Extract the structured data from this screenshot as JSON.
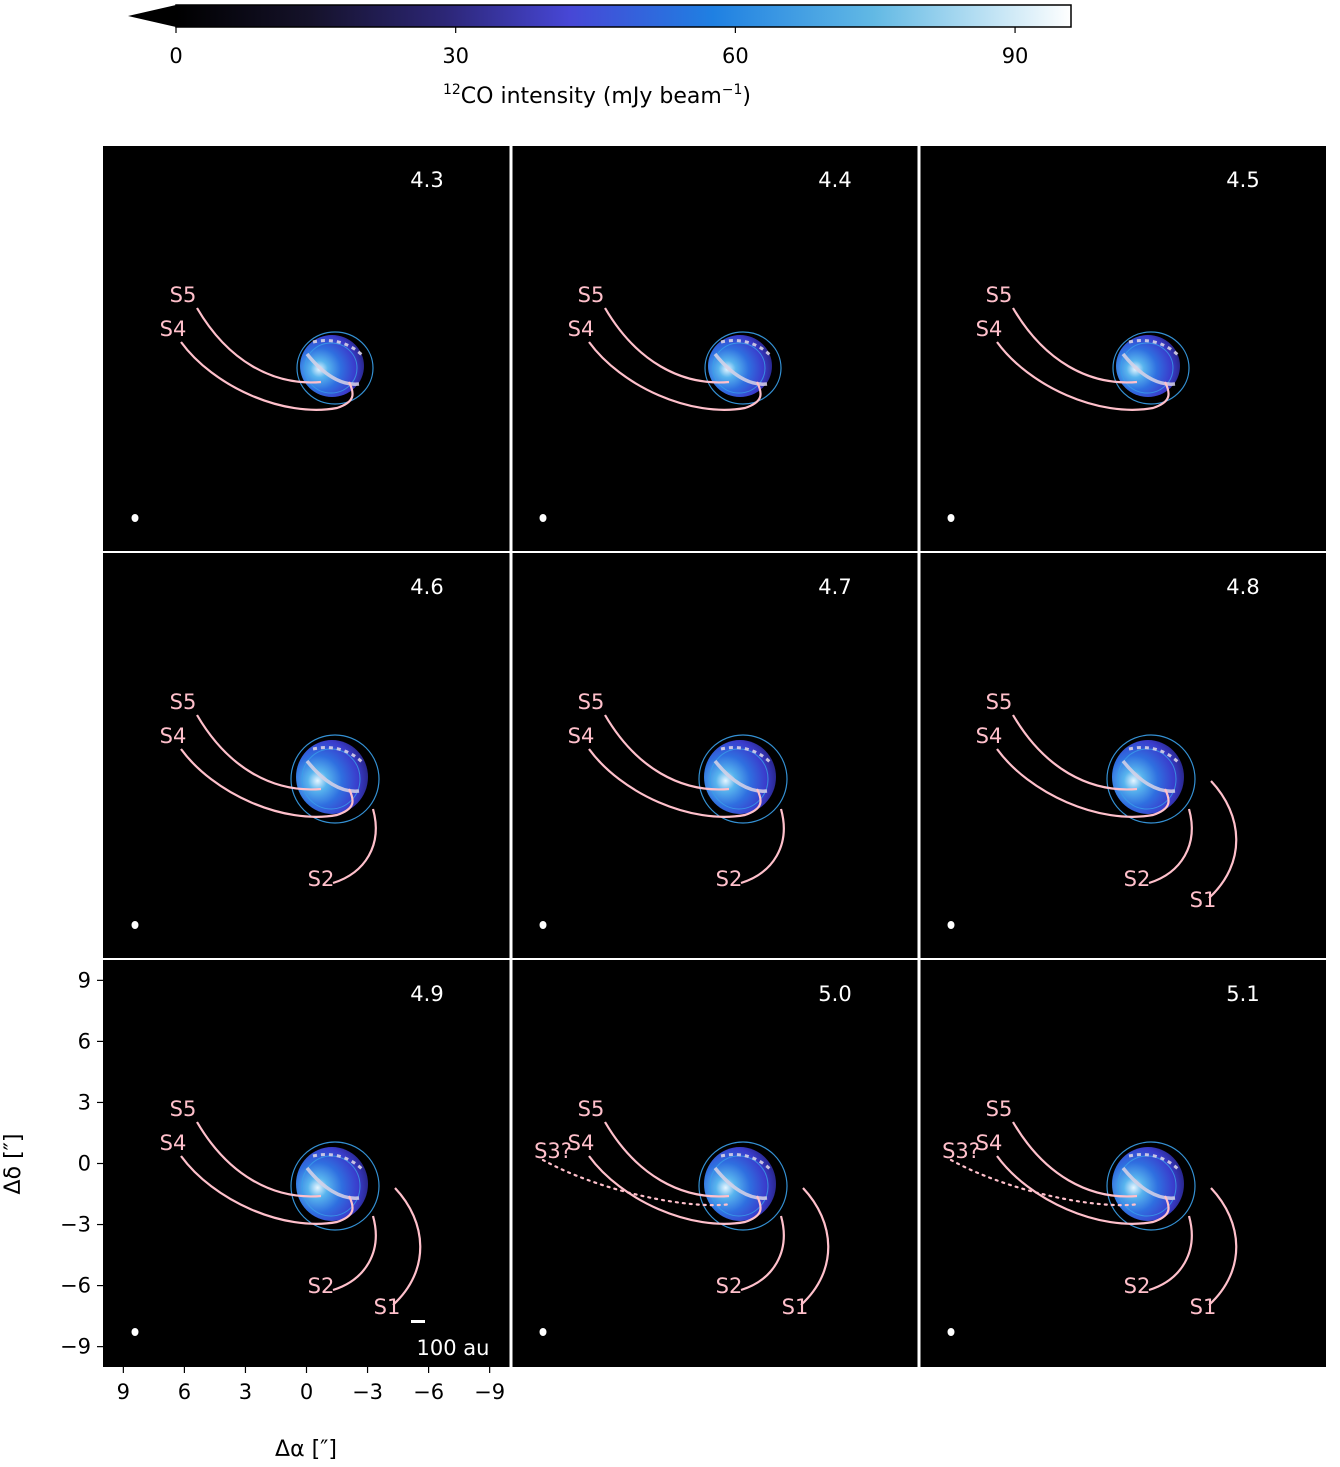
{
  "colorbar": {
    "label_prefix": "12",
    "label_main": "CO intensity (mJy beam",
    "label_exp": "−1",
    "label_suffix": ")",
    "ticks": [
      "0",
      "30",
      "60",
      "90"
    ],
    "range": [
      0,
      96
    ],
    "extend": "min",
    "colors": [
      "#000000",
      "#211a3c",
      "#4a47d4",
      "#1f7fe0",
      "#5fb8e6",
      "#ffffff"
    ]
  },
  "chart_data": {
    "type": "heatmap",
    "description_panels": "channel maps",
    "xlabel": "Δα [″]",
    "ylabel": "Δδ [″]",
    "xlim": [
      10,
      -10
    ],
    "ylim": [
      -10,
      10
    ],
    "x_ticks": [
      "9",
      "6",
      "3",
      "0",
      "−3",
      "−6",
      "−9"
    ],
    "y_ticks": [
      "9",
      "6",
      "3",
      "0",
      "−3",
      "−6",
      "−9"
    ],
    "scalebar_label": "100 au",
    "panels": [
      {
        "velocity": "4.3",
        "spirals": [
          "S5",
          "S4"
        ]
      },
      {
        "velocity": "4.4",
        "spirals": [
          "S5",
          "S4"
        ]
      },
      {
        "velocity": "4.5",
        "spirals": [
          "S5",
          "S4"
        ]
      },
      {
        "velocity": "4.6",
        "spirals": [
          "S5",
          "S4",
          "S2"
        ]
      },
      {
        "velocity": "4.7",
        "spirals": [
          "S5",
          "S4",
          "S2"
        ]
      },
      {
        "velocity": "4.8",
        "spirals": [
          "S5",
          "S4",
          "S2",
          "S1"
        ]
      },
      {
        "velocity": "4.9",
        "spirals": [
          "S5",
          "S4",
          "S2",
          "S1"
        ]
      },
      {
        "velocity": "5.0",
        "spirals": [
          "S5",
          "S4",
          "S3?",
          "S2",
          "S1"
        ]
      },
      {
        "velocity": "5.1",
        "spirals": [
          "S5",
          "S4",
          "S3?",
          "S2",
          "S1"
        ]
      }
    ],
    "colors": {
      "spiral": "#ffc0cb",
      "contour": "#3aa0ea",
      "beam": "#ffffff"
    }
  }
}
